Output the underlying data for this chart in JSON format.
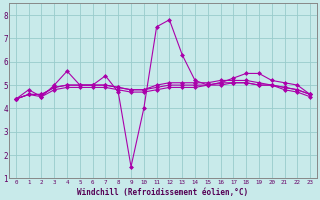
{
  "xlabel": "Windchill (Refroidissement éolien,°C)",
  "background_color": "#c8eaea",
  "grid_color": "#99cccc",
  "line_color": "#aa00aa",
  "xlim": [
    -0.5,
    23.5
  ],
  "ylim": [
    1,
    8.5
  ],
  "xticks": [
    0,
    1,
    2,
    3,
    4,
    5,
    6,
    7,
    8,
    9,
    10,
    11,
    12,
    13,
    14,
    15,
    16,
    17,
    18,
    19,
    20,
    21,
    22,
    23
  ],
  "yticks": [
    1,
    2,
    3,
    4,
    5,
    6,
    7,
    8
  ],
  "series": [
    [
      4.4,
      4.8,
      4.5,
      5.0,
      5.6,
      5.0,
      5.0,
      5.4,
      4.7,
      1.5,
      4.0,
      7.5,
      7.8,
      6.3,
      5.2,
      5.0,
      5.1,
      5.3,
      5.5,
      5.5,
      5.2,
      5.1,
      5.0,
      4.6
    ],
    [
      4.4,
      4.6,
      4.6,
      4.9,
      5.0,
      5.0,
      5.0,
      5.0,
      4.9,
      4.8,
      4.8,
      4.9,
      5.0,
      5.0,
      5.0,
      5.0,
      5.1,
      5.1,
      5.1,
      5.0,
      5.0,
      4.9,
      4.8,
      4.6
    ],
    [
      4.4,
      4.6,
      4.6,
      4.9,
      5.0,
      5.0,
      5.0,
      5.0,
      4.9,
      4.8,
      4.8,
      5.0,
      5.1,
      5.1,
      5.1,
      5.1,
      5.2,
      5.2,
      5.2,
      5.1,
      5.0,
      4.9,
      4.8,
      4.6
    ],
    [
      4.4,
      4.6,
      4.5,
      4.8,
      4.9,
      4.9,
      4.9,
      4.9,
      4.8,
      4.7,
      4.7,
      4.8,
      4.9,
      4.9,
      4.9,
      5.0,
      5.0,
      5.1,
      5.1,
      5.0,
      5.0,
      4.8,
      4.7,
      4.5
    ]
  ]
}
